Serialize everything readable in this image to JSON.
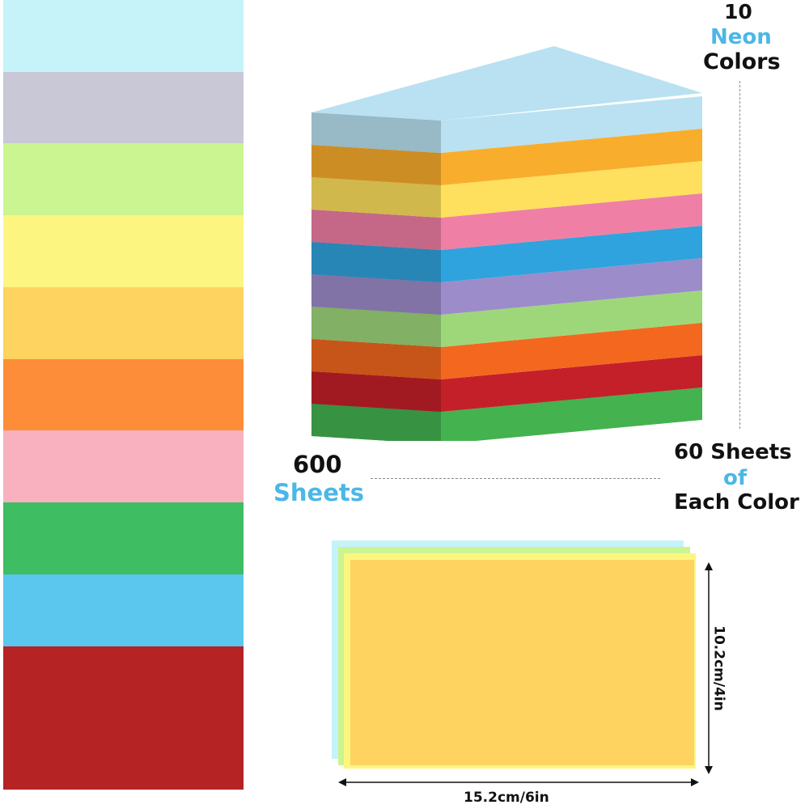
{
  "colors": {
    "swatches": [
      "#c6f2f9",
      "#c8c8d7",
      "#caf590",
      "#fcf681",
      "#fed35f",
      "#fe8d39",
      "#f9b1bf",
      "#3ebd62",
      "#5bc6ee",
      "#b52324"
    ],
    "stack_layers": [
      "#43b24f",
      "#c4202a",
      "#f3681e",
      "#9ed77a",
      "#9d8cca",
      "#2fa3dd",
      "#f07fa5",
      "#ffe05e",
      "#f9ad2c",
      "#b9e1f1"
    ],
    "accent": "#4bb7e6"
  },
  "header": {
    "count": "10",
    "highlight": "Neon",
    "suffix": "Colors"
  },
  "total": {
    "number": "600",
    "unit": "Sheets"
  },
  "per_color": {
    "line1": "60 Sheets",
    "line2": "of",
    "line3": "Each Color"
  },
  "dimensions": {
    "width": "15.2cm/6in",
    "height": "10.2cm/4in"
  }
}
